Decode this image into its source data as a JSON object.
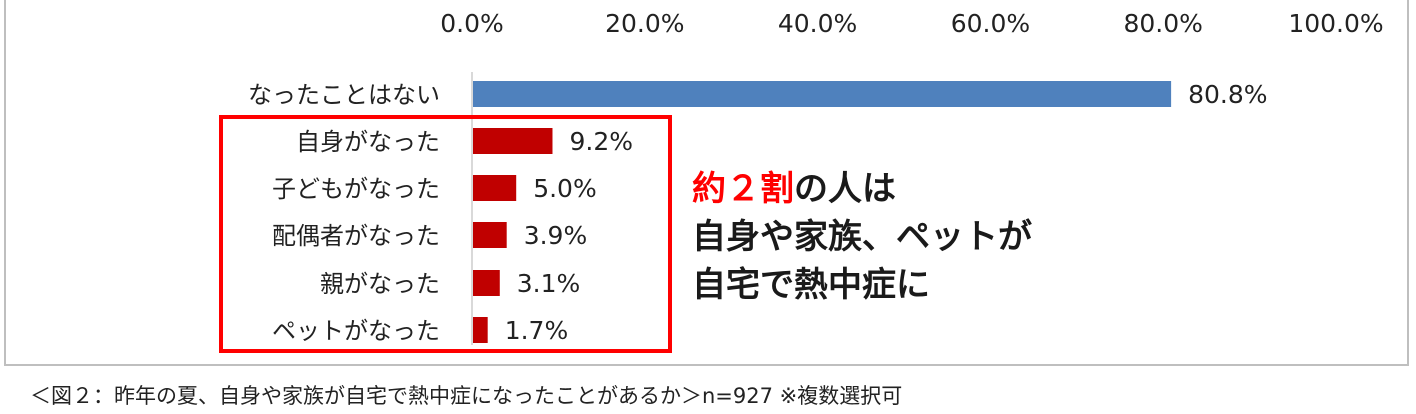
{
  "chart_data": {
    "type": "bar",
    "orientation": "horizontal",
    "categories": [
      "なったことはない",
      "自身がなった",
      "子どもがなった",
      "配偶者がなった",
      "親がなった",
      "ペットがなった"
    ],
    "values": [
      80.8,
      9.2,
      5.0,
      3.9,
      3.1,
      1.7
    ],
    "value_labels": [
      "80.8%",
      "9.2%",
      "5.0%",
      "3.9%",
      "3.1%",
      "1.7%"
    ],
    "xlim": [
      0,
      100
    ],
    "x_ticks": [
      "0.0%",
      "20.0%",
      "40.0%",
      "60.0%",
      "80.0%",
      "100.0%"
    ],
    "x_axis_position": "top",
    "grid": false,
    "colors": {
      "first_bar": "#4f81bd",
      "highlight_bars": "#c00000",
      "highlight_box": "#ff0000",
      "annotation_accent": "#ff0000",
      "annotation_text": "#1a1a1a"
    },
    "annotation": {
      "accent": "約２割",
      "line1_rest": "の人は",
      "line2": "自身や家族、ペットが",
      "line3": "自宅で熱中症に"
    }
  },
  "caption": "＜図２：昨年の夏、自身や家族が自宅で熱中症になったことがあるか＞n=927 ※複数選択可"
}
